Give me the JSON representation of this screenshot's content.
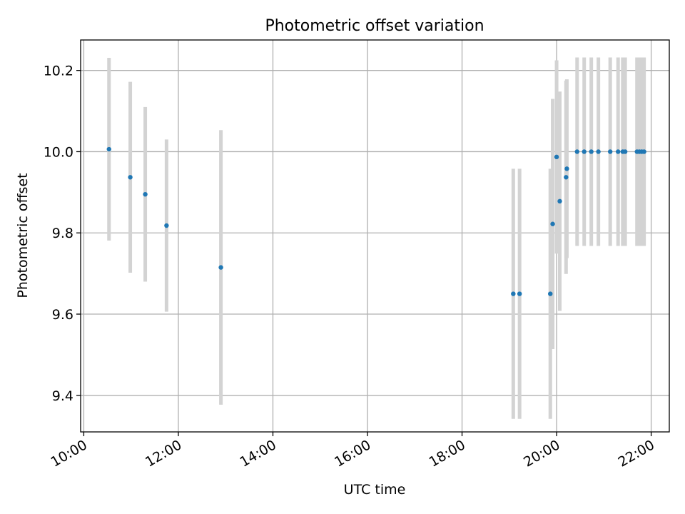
{
  "chart_data": {
    "type": "scatter",
    "title": "Photometric offset variation",
    "xlabel": "UTC time",
    "ylabel": "Photometric offset",
    "x_axis_unit": "hours (UTC)",
    "xlim": [
      "09:56",
      "22:23"
    ],
    "ylim": [
      9.31,
      10.275
    ],
    "x_ticks": [
      "10:00",
      "12:00",
      "14:00",
      "16:00",
      "18:00",
      "20:00",
      "22:00"
    ],
    "y_ticks": [
      "9.4",
      "9.6",
      "9.8",
      "10.0",
      "10.2"
    ],
    "grid": true,
    "colors": {
      "points": "#1f77b4",
      "errorbars": "#d3d3d3",
      "grid": "#b0b0b0"
    },
    "points": [
      {
        "x": "10:32",
        "y": 10.006,
        "err": 0.225
      },
      {
        "x": "10:59",
        "y": 9.937,
        "err": 0.235
      },
      {
        "x": "11:18",
        "y": 9.895,
        "err": 0.215
      },
      {
        "x": "11:45",
        "y": 9.818,
        "err": 0.212
      },
      {
        "x": "12:54",
        "y": 9.715,
        "err": 0.338
      },
      {
        "x": "19:05",
        "y": 9.65,
        "err": 0.308
      },
      {
        "x": "19:13",
        "y": 9.65,
        "err": 0.308
      },
      {
        "x": "19:52",
        "y": 9.65,
        "err": 0.308
      },
      {
        "x": "19:55",
        "y": 9.822,
        "err": 0.308
      },
      {
        "x": "20:00",
        "y": 9.987,
        "err": 0.238
      },
      {
        "x": "20:04",
        "y": 9.878,
        "err": 0.27
      },
      {
        "x": "20:12",
        "y": 9.937,
        "err": 0.238
      },
      {
        "x": "20:13",
        "y": 9.958,
        "err": 0.22
      },
      {
        "x": "20:26",
        "y": 10.0,
        "err": 0.232
      },
      {
        "x": "20:35",
        "y": 10.0,
        "err": 0.232
      },
      {
        "x": "20:44",
        "y": 10.0,
        "err": 0.232
      },
      {
        "x": "20:53",
        "y": 10.0,
        "err": 0.232
      },
      {
        "x": "21:08",
        "y": 10.0,
        "err": 0.232
      },
      {
        "x": "21:18",
        "y": 10.0,
        "err": 0.232
      },
      {
        "x": "21:24",
        "y": 10.0,
        "err": 0.232
      },
      {
        "x": "21:27",
        "y": 10.0,
        "err": 0.232
      },
      {
        "x": "21:42",
        "y": 10.0,
        "err": 0.232
      },
      {
        "x": "21:45",
        "y": 10.0,
        "err": 0.232
      },
      {
        "x": "21:48",
        "y": 10.0,
        "err": 0.232
      },
      {
        "x": "21:51",
        "y": 10.0,
        "err": 0.232
      }
    ]
  }
}
